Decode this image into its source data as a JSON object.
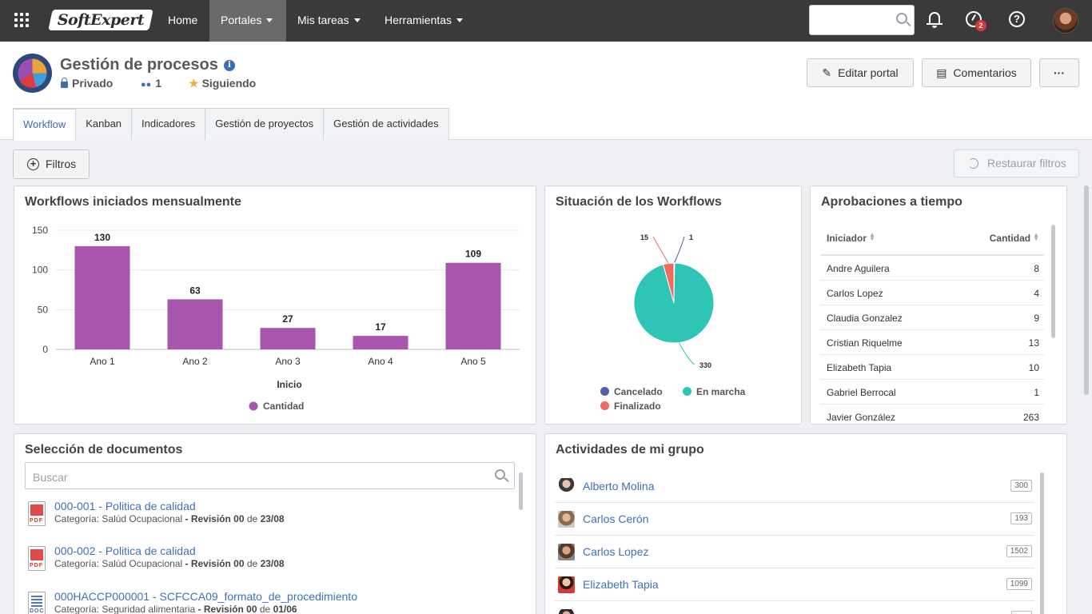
{
  "topbar": {
    "logo_text": "SoftExpert",
    "nav": [
      {
        "label": "Home",
        "active": false,
        "dropdown": false
      },
      {
        "label": "Portales",
        "active": true,
        "dropdown": true
      },
      {
        "label": "Mis tareas",
        "active": false,
        "dropdown": true
      },
      {
        "label": "Herramientas",
        "active": false,
        "dropdown": true
      }
    ],
    "search_placeholder": "",
    "notification_badge": "2",
    "help_glyph": "?"
  },
  "header": {
    "title": "Gestión de procesos",
    "privacy": "Privado",
    "members_count": "1",
    "following": "Siguiendo",
    "edit_button": "Editar portal",
    "comments_button": "Comentarios",
    "more_button": "···",
    "tabs": [
      {
        "label": "Workflow",
        "active": true
      },
      {
        "label": "Kanban",
        "active": false
      },
      {
        "label": "Indicadores",
        "active": false
      },
      {
        "label": "Gestión de proyectos",
        "active": false
      },
      {
        "label": "Gestión de actividades",
        "active": false
      }
    ]
  },
  "filters": {
    "filter_button": "Filtros",
    "restore_button": "Restaurar filtros"
  },
  "cards": {
    "monthly": {
      "title": "Workflows iniciados mensualmente"
    },
    "status": {
      "title": "Situación de los Workflows"
    },
    "approvals": {
      "title": "Aprobaciones a tiempo",
      "col_initiator": "Iniciador",
      "col_quantity": "Cantidad",
      "rows": [
        {
          "name": "Andre Aguilera",
          "qty": "8"
        },
        {
          "name": "Carlos Lopez",
          "qty": "4"
        },
        {
          "name": "Claudia Gonzalez",
          "qty": "9"
        },
        {
          "name": "Cristian Riquelme",
          "qty": "13"
        },
        {
          "name": "Elizabeth Tapia",
          "qty": "10"
        },
        {
          "name": "Gabriel Berrocal",
          "qty": "1"
        },
        {
          "name": "Javier González",
          "qty": "263"
        }
      ]
    },
    "documents": {
      "title": "Selección de documentos",
      "search_placeholder": "Buscar",
      "items": [
        {
          "type": "pdf",
          "file_label": "PDF",
          "title": "000-001 - Politica de calidad",
          "cat_label": "Categoría:",
          "category": "Salúd Ocupacional",
          "sep": "-",
          "rev_label": "Revisión 00",
          "de": "de",
          "date": "23/08"
        },
        {
          "type": "pdf",
          "file_label": "PDF",
          "title": "000-002 - Politica de calidad",
          "cat_label": "Categoría:",
          "category": "Salúd Ocupacional",
          "sep": "-",
          "rev_label": "Revisión 00",
          "de": "de",
          "date": "23/08"
        },
        {
          "type": "doc",
          "file_label": "DOC",
          "title": "000HACCP000001 - SCFCCA09_formato_de_procedimiento",
          "cat_label": "Categoría:",
          "category": "Seguridad alimentaria",
          "sep": "-",
          "rev_label": "Revisión 00",
          "de": "de",
          "date": "01/06"
        }
      ]
    },
    "group": {
      "title": "Actividades de mi grupo",
      "rows": [
        {
          "name": "Alberto Molina",
          "count": "300"
        },
        {
          "name": "Carlos Cerón",
          "count": "193"
        },
        {
          "name": "Carlos Lopez",
          "count": "1502"
        },
        {
          "name": "Elizabeth Tapia",
          "count": "1099"
        },
        {
          "name": "",
          "count": ""
        }
      ]
    }
  },
  "chart_data": [
    {
      "type": "bar",
      "title": "Workflows iniciados mensualmente",
      "categories": [
        "Ano 1",
        "Ano 2",
        "Ano 3",
        "Ano 4",
        "Ano 5"
      ],
      "series": [
        {
          "name": "Cantidad",
          "values": [
            130,
            63,
            27,
            17,
            109
          ],
          "color": "#a855ad"
        }
      ],
      "xlabel": "Inicio",
      "ylabel": "",
      "ylim": [
        0,
        150
      ],
      "yticks": [
        0,
        50,
        100,
        150
      ],
      "grid": true,
      "legend": "bottom"
    },
    {
      "type": "pie",
      "title": "Situación de los Workflows",
      "slices": [
        {
          "label": "Cancelado",
          "value": 1,
          "color": "#5360a5"
        },
        {
          "label": "En marcha",
          "value": 330,
          "color": "#2ec4b6"
        },
        {
          "label": "Finalizado",
          "value": 15,
          "color": "#ef6a5f"
        }
      ],
      "legend": "bottom"
    }
  ]
}
